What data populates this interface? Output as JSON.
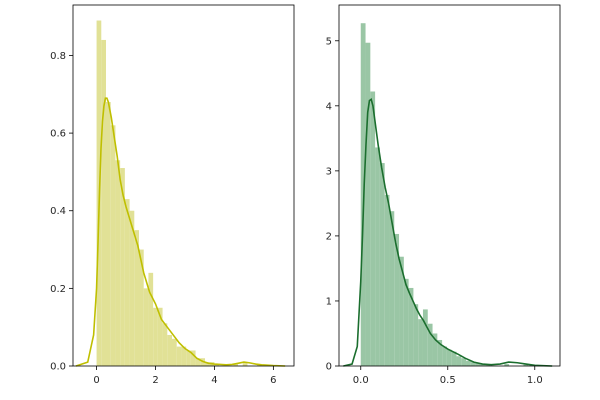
{
  "chart_data": [
    {
      "type": "bar",
      "subtype": "histogram-with-kde",
      "color": "#bfbf00",
      "bar_fill": "#e1e196",
      "title": "",
      "xlabel": "",
      "ylabel": "",
      "xlim": [
        -0.8,
        6.7
      ],
      "ylim": [
        0,
        0.93
      ],
      "xticks": [
        0,
        2,
        4,
        6
      ],
      "yticks": [
        0.0,
        0.2,
        0.4,
        0.6,
        0.8
      ],
      "bin_width": 0.16,
      "bins": [
        {
          "x": 0.0,
          "h": 0.89
        },
        {
          "x": 0.16,
          "h": 0.84
        },
        {
          "x": 0.32,
          "h": 0.68
        },
        {
          "x": 0.48,
          "h": 0.62
        },
        {
          "x": 0.64,
          "h": 0.53
        },
        {
          "x": 0.8,
          "h": 0.51
        },
        {
          "x": 0.96,
          "h": 0.43
        },
        {
          "x": 1.12,
          "h": 0.4
        },
        {
          "x": 1.28,
          "h": 0.35
        },
        {
          "x": 1.44,
          "h": 0.3
        },
        {
          "x": 1.6,
          "h": 0.2
        },
        {
          "x": 1.76,
          "h": 0.24
        },
        {
          "x": 1.92,
          "h": 0.15
        },
        {
          "x": 2.08,
          "h": 0.15
        },
        {
          "x": 2.24,
          "h": 0.11
        },
        {
          "x": 2.4,
          "h": 0.08
        },
        {
          "x": 2.56,
          "h": 0.07
        },
        {
          "x": 2.72,
          "h": 0.05
        },
        {
          "x": 2.88,
          "h": 0.05
        },
        {
          "x": 3.04,
          "h": 0.04
        },
        {
          "x": 3.2,
          "h": 0.04
        },
        {
          "x": 3.36,
          "h": 0.02
        },
        {
          "x": 3.52,
          "h": 0.02
        },
        {
          "x": 3.68,
          "h": 0.01
        },
        {
          "x": 3.84,
          "h": 0.01
        },
        {
          "x": 4.0,
          "h": 0.005
        },
        {
          "x": 4.64,
          "h": 0.005
        },
        {
          "x": 4.96,
          "h": 0.01
        },
        {
          "x": 5.44,
          "h": 0.005
        }
      ],
      "kde": {
        "x": [
          -0.7,
          -0.3,
          -0.1,
          0.0,
          0.05,
          0.1,
          0.15,
          0.2,
          0.25,
          0.3,
          0.35,
          0.4,
          0.5,
          0.6,
          0.7,
          0.8,
          0.9,
          1.0,
          1.2,
          1.4,
          1.6,
          1.8,
          2.0,
          2.2,
          2.4,
          2.6,
          2.8,
          3.0,
          3.2,
          3.4,
          3.6,
          3.8,
          4.0,
          4.2,
          4.4,
          4.6,
          4.8,
          5.0,
          5.2,
          5.4,
          5.6,
          6.0,
          6.4
        ],
        "y": [
          0.0,
          0.01,
          0.08,
          0.2,
          0.32,
          0.45,
          0.56,
          0.63,
          0.67,
          0.69,
          0.69,
          0.68,
          0.64,
          0.59,
          0.54,
          0.48,
          0.44,
          0.41,
          0.36,
          0.31,
          0.24,
          0.19,
          0.16,
          0.12,
          0.1,
          0.08,
          0.06,
          0.045,
          0.035,
          0.02,
          0.012,
          0.007,
          0.005,
          0.004,
          0.003,
          0.004,
          0.007,
          0.01,
          0.008,
          0.005,
          0.003,
          0.001,
          0.0
        ]
      }
    },
    {
      "type": "bar",
      "subtype": "histogram-with-kde",
      "color": "#1b6e2e",
      "bar_fill": "#9ac6a5",
      "title": "",
      "xlabel": "",
      "ylabel": "",
      "xlim": [
        -0.125,
        1.145
      ],
      "ylim": [
        0,
        5.55
      ],
      "xticks": [
        0.0,
        0.5,
        1.0
      ],
      "yticks": [
        0,
        1,
        2,
        3,
        4,
        5
      ],
      "bin_width": 0.0275,
      "bins": [
        {
          "x": 0.0,
          "h": 5.27
        },
        {
          "x": 0.0275,
          "h": 4.97
        },
        {
          "x": 0.055,
          "h": 4.22
        },
        {
          "x": 0.0825,
          "h": 3.36
        },
        {
          "x": 0.11,
          "h": 3.12
        },
        {
          "x": 0.1375,
          "h": 2.63
        },
        {
          "x": 0.165,
          "h": 2.38
        },
        {
          "x": 0.1925,
          "h": 2.03
        },
        {
          "x": 0.22,
          "h": 1.68
        },
        {
          "x": 0.2475,
          "h": 1.34
        },
        {
          "x": 0.275,
          "h": 1.2
        },
        {
          "x": 0.3025,
          "h": 0.95
        },
        {
          "x": 0.33,
          "h": 0.72
        },
        {
          "x": 0.3575,
          "h": 0.87
        },
        {
          "x": 0.385,
          "h": 0.65
        },
        {
          "x": 0.4125,
          "h": 0.5
        },
        {
          "x": 0.44,
          "h": 0.4
        },
        {
          "x": 0.4675,
          "h": 0.3
        },
        {
          "x": 0.495,
          "h": 0.25
        },
        {
          "x": 0.5225,
          "h": 0.22
        },
        {
          "x": 0.55,
          "h": 0.15
        },
        {
          "x": 0.5775,
          "h": 0.12
        },
        {
          "x": 0.605,
          "h": 0.08
        },
        {
          "x": 0.6325,
          "h": 0.06
        },
        {
          "x": 0.66,
          "h": 0.04
        },
        {
          "x": 0.6875,
          "h": 0.03
        },
        {
          "x": 0.715,
          "h": 0.02
        },
        {
          "x": 0.825,
          "h": 0.03
        },
        {
          "x": 0.935,
          "h": 0.02
        }
      ],
      "kde": {
        "x": [
          -0.1,
          -0.05,
          -0.02,
          0.0,
          0.01,
          0.02,
          0.03,
          0.04,
          0.05,
          0.06,
          0.07,
          0.08,
          0.1,
          0.12,
          0.14,
          0.16,
          0.18,
          0.2,
          0.22,
          0.24,
          0.26,
          0.28,
          0.3,
          0.32,
          0.34,
          0.36,
          0.38,
          0.4,
          0.43,
          0.46,
          0.5,
          0.53,
          0.56,
          0.6,
          0.65,
          0.7,
          0.75,
          0.8,
          0.85,
          0.9,
          0.95,
          1.0,
          1.05,
          1.1
        ],
        "y": [
          0.0,
          0.03,
          0.3,
          1.3,
          2.0,
          2.8,
          3.4,
          3.9,
          4.08,
          4.1,
          4.0,
          3.8,
          3.4,
          3.05,
          2.75,
          2.5,
          2.2,
          1.9,
          1.65,
          1.45,
          1.25,
          1.12,
          1.0,
          0.88,
          0.78,
          0.7,
          0.6,
          0.5,
          0.4,
          0.33,
          0.26,
          0.22,
          0.18,
          0.12,
          0.06,
          0.03,
          0.02,
          0.03,
          0.06,
          0.05,
          0.03,
          0.01,
          0.005,
          0.0
        ]
      }
    }
  ]
}
